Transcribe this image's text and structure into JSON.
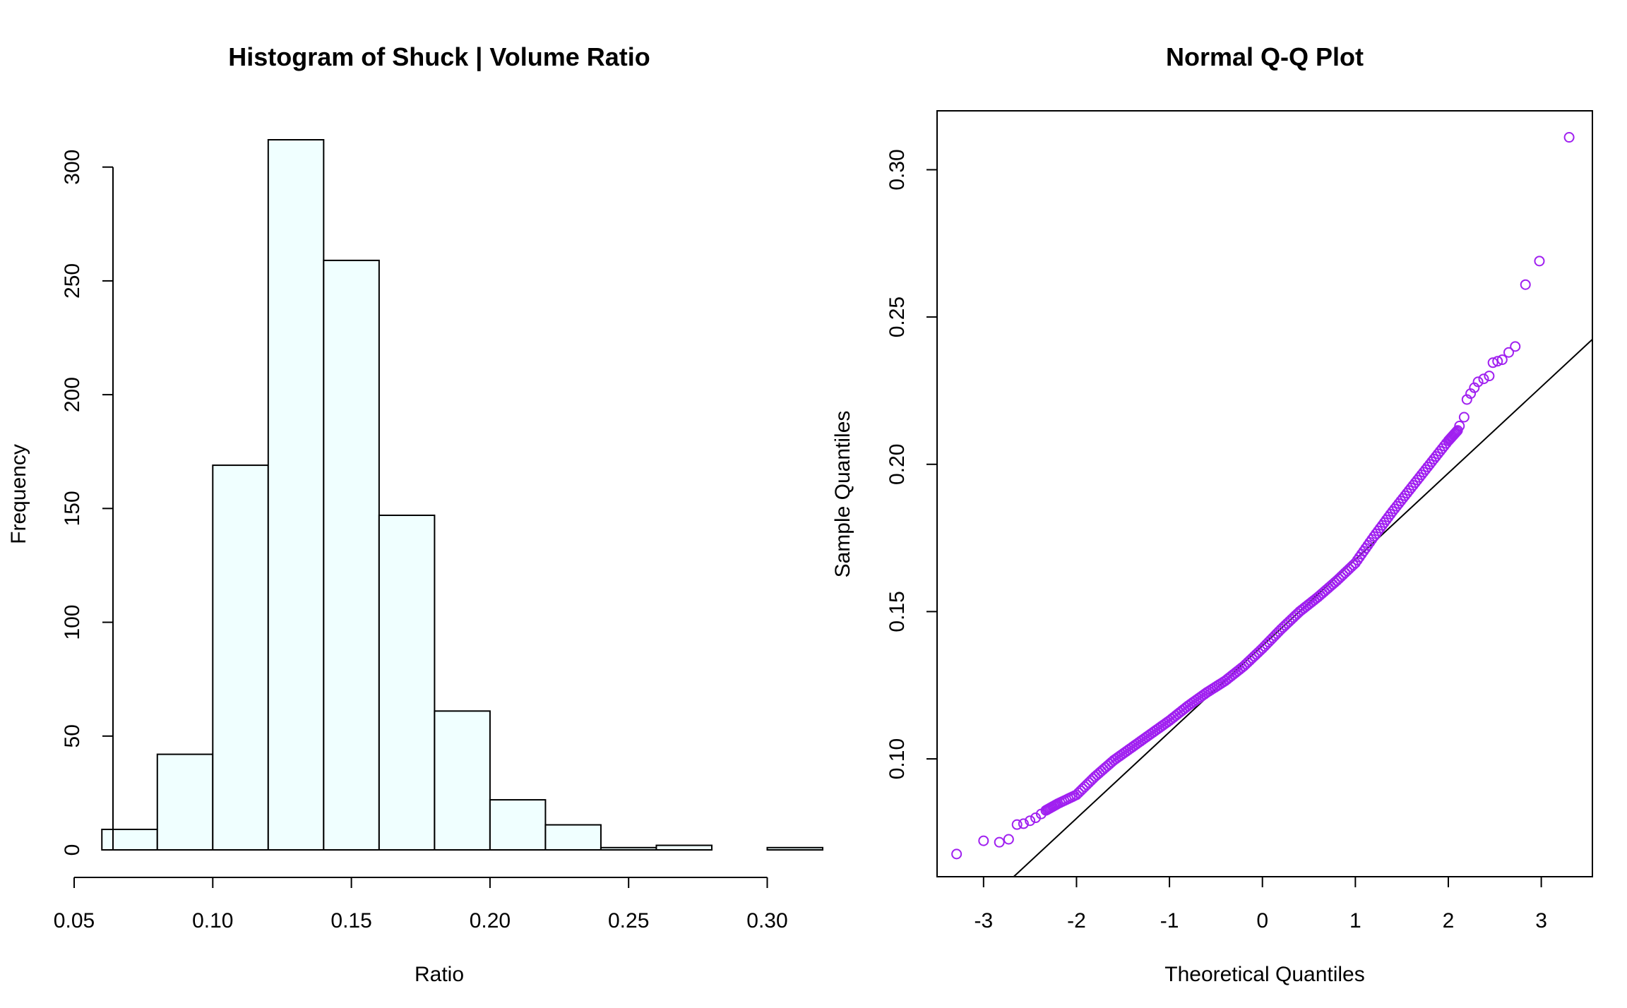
{
  "chart_data": [
    {
      "type": "bar",
      "title": "Histogram of Shuck | Volume Ratio",
      "xlabel": "Ratio",
      "ylabel": "Frequency",
      "bins": [
        {
          "from": 0.06,
          "to": 0.08,
          "count": 9
        },
        {
          "from": 0.08,
          "to": 0.1,
          "count": 42
        },
        {
          "from": 0.1,
          "to": 0.12,
          "count": 169
        },
        {
          "from": 0.12,
          "to": 0.14,
          "count": 312
        },
        {
          "from": 0.14,
          "to": 0.16,
          "count": 259
        },
        {
          "from": 0.16,
          "to": 0.18,
          "count": 147
        },
        {
          "from": 0.18,
          "to": 0.2,
          "count": 61
        },
        {
          "from": 0.2,
          "to": 0.22,
          "count": 22
        },
        {
          "from": 0.22,
          "to": 0.24,
          "count": 11
        },
        {
          "from": 0.24,
          "to": 0.26,
          "count": 1
        },
        {
          "from": 0.26,
          "to": 0.28,
          "count": 2
        },
        {
          "from": 0.28,
          "to": 0.3,
          "count": 0
        },
        {
          "from": 0.3,
          "to": 0.32,
          "count": 1
        }
      ],
      "xticks": [
        "0.05",
        "0.10",
        "0.15",
        "0.20",
        "0.25",
        "0.30"
      ],
      "yticks": [
        "0",
        "50",
        "100",
        "150",
        "200",
        "250",
        "300"
      ],
      "xlim": [
        0.05,
        0.32
      ],
      "ylim": [
        0,
        312
      ],
      "bar_fill": "#f0ffff",
      "bar_stroke": "#000000",
      "grid": false
    },
    {
      "type": "scatter",
      "title": "Normal Q-Q Plot",
      "xlabel": "Theoretical Quantiles",
      "ylabel": "Sample Quantiles",
      "xticks": [
        "-3",
        "-2",
        "-1",
        "0",
        "1",
        "2",
        "3"
      ],
      "yticks": [
        "0.10",
        "0.15",
        "0.20",
        "0.25",
        "0.30"
      ],
      "xlim": [
        -3.5,
        3.55
      ],
      "ylim": [
        0.06,
        0.32
      ],
      "reference_line": {
        "slope": 0.0293,
        "intercept": 0.1384
      },
      "point_color": "#a020f0",
      "grid": false,
      "outlier_points": [
        {
          "x": -3.29,
          "y": 0.0677
        },
        {
          "x": -3.0,
          "y": 0.0722
        },
        {
          "x": -2.83,
          "y": 0.0717
        },
        {
          "x": -2.73,
          "y": 0.0727
        },
        {
          "x": -2.64,
          "y": 0.0777
        },
        {
          "x": -2.57,
          "y": 0.078
        },
        {
          "x": -2.5,
          "y": 0.079
        },
        {
          "x": -2.44,
          "y": 0.08
        },
        {
          "x": -2.38,
          "y": 0.0813
        },
        {
          "x": 2.12,
          "y": 0.213
        },
        {
          "x": 2.17,
          "y": 0.216
        },
        {
          "x": 2.2,
          "y": 0.222
        },
        {
          "x": 2.24,
          "y": 0.224
        },
        {
          "x": 2.28,
          "y": 0.226
        },
        {
          "x": 2.32,
          "y": 0.228
        },
        {
          "x": 2.38,
          "y": 0.229
        },
        {
          "x": 2.44,
          "y": 0.23
        },
        {
          "x": 2.48,
          "y": 0.2345
        },
        {
          "x": 2.53,
          "y": 0.235
        },
        {
          "x": 2.58,
          "y": 0.2355
        },
        {
          "x": 2.65,
          "y": 0.238
        },
        {
          "x": 2.72,
          "y": 0.24
        },
        {
          "x": 2.83,
          "y": 0.261
        },
        {
          "x": 2.98,
          "y": 0.269
        },
        {
          "x": 3.3,
          "y": 0.311
        }
      ],
      "body_curve": [
        {
          "x": -2.33,
          "y": 0.0825
        },
        {
          "x": -2.2,
          "y": 0.0848
        },
        {
          "x": -2.0,
          "y": 0.0878
        },
        {
          "x": -1.8,
          "y": 0.094
        },
        {
          "x": -1.6,
          "y": 0.0995
        },
        {
          "x": -1.4,
          "y": 0.104
        },
        {
          "x": -1.2,
          "y": 0.1085
        },
        {
          "x": -1.0,
          "y": 0.113
        },
        {
          "x": -0.8,
          "y": 0.118
        },
        {
          "x": -0.6,
          "y": 0.1225
        },
        {
          "x": -0.4,
          "y": 0.1265
        },
        {
          "x": -0.2,
          "y": 0.1315
        },
        {
          "x": 0.0,
          "y": 0.1375
        },
        {
          "x": 0.2,
          "y": 0.144
        },
        {
          "x": 0.4,
          "y": 0.15
        },
        {
          "x": 0.6,
          "y": 0.155
        },
        {
          "x": 0.8,
          "y": 0.1605
        },
        {
          "x": 1.0,
          "y": 0.1665
        },
        {
          "x": 1.2,
          "y": 0.1755
        },
        {
          "x": 1.4,
          "y": 0.184
        },
        {
          "x": 1.6,
          "y": 0.192
        },
        {
          "x": 1.8,
          "y": 0.2
        },
        {
          "x": 2.0,
          "y": 0.208
        },
        {
          "x": 2.1,
          "y": 0.2115
        }
      ]
    }
  ]
}
